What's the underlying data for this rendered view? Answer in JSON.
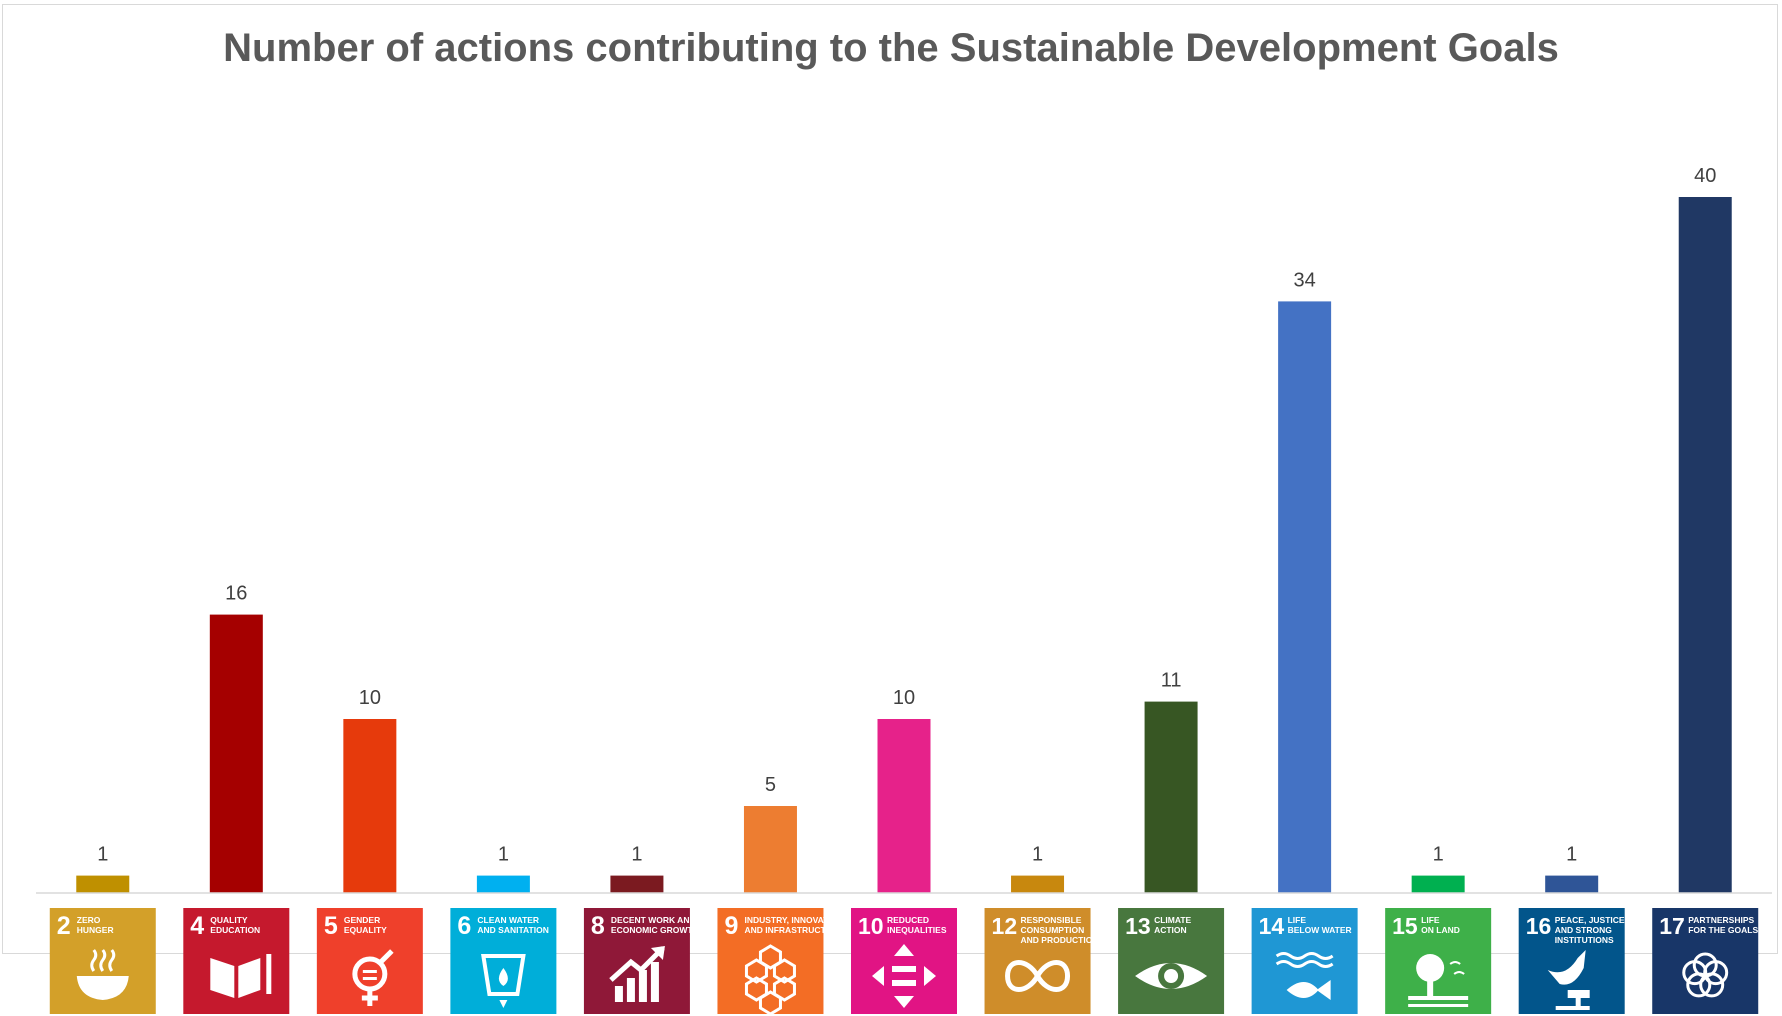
{
  "chart_data": {
    "type": "bar",
    "title": "Number of actions contributing to the Sustainable Development Goals",
    "xlabel": "",
    "ylabel": "",
    "ylim": [
      0,
      40
    ],
    "grid": false,
    "legend": "none",
    "categories": [
      {
        "num": "2",
        "line1": "ZERO",
        "line2": "HUNGER",
        "line3": "",
        "icon": "bowl-icon",
        "bar_color": "#BF9000",
        "tile_color": "#D3A029"
      },
      {
        "num": "4",
        "line1": "QUALITY",
        "line2": "EDUCATION",
        "line3": "",
        "icon": "book-icon",
        "bar_color": "#A50000",
        "tile_color": "#C5192D"
      },
      {
        "num": "5",
        "line1": "GENDER",
        "line2": "EQUALITY",
        "line3": "",
        "icon": "gender-icon",
        "bar_color": "#E63A0C",
        "tile_color": "#EF402B"
      },
      {
        "num": "6",
        "line1": "CLEAN WATER",
        "line2": "AND SANITATION",
        "line3": "",
        "icon": "water-icon",
        "bar_color": "#00B0F0",
        "tile_color": "#00AED9"
      },
      {
        "num": "8",
        "line1": "DECENT WORK AND",
        "line2": "ECONOMIC GROWTH",
        "line3": "",
        "icon": "growth-chart-icon",
        "bar_color": "#7B1A20",
        "tile_color": "#8F1838"
      },
      {
        "num": "9",
        "line1": "INDUSTRY, INNOVATION",
        "line2": "AND INFRASTRUCTURE",
        "line3": "",
        "icon": "cubes-icon",
        "bar_color": "#ED7D31",
        "tile_color": "#F36D25"
      },
      {
        "num": "10",
        "line1": "REDUCED",
        "line2": "INEQUALITIES",
        "line3": "",
        "icon": "equality-arrows-icon",
        "bar_color": "#E6228A",
        "tile_color": "#E11484"
      },
      {
        "num": "12",
        "line1": "RESPONSIBLE",
        "line2": "CONSUMPTION",
        "line3": "AND PRODUCTION",
        "icon": "infinity-icon",
        "bar_color": "#C8880E",
        "tile_color": "#CF8D2A"
      },
      {
        "num": "13",
        "line1": "CLIMATE",
        "line2": "ACTION",
        "line3": "",
        "icon": "eye-globe-icon",
        "bar_color": "#375623",
        "tile_color": "#48773E"
      },
      {
        "num": "14",
        "line1": "LIFE",
        "line2": "BELOW WATER",
        "line3": "",
        "icon": "fish-icon",
        "bar_color": "#4472C4",
        "tile_color": "#1F97D4"
      },
      {
        "num": "15",
        "line1": "LIFE",
        "line2": "ON LAND",
        "line3": "",
        "icon": "tree-icon",
        "bar_color": "#00B050",
        "tile_color": "#3EB049"
      },
      {
        "num": "16",
        "line1": "PEACE, JUSTICE",
        "line2": "AND STRONG",
        "line3": "INSTITUTIONS",
        "icon": "dove-gavel-icon",
        "bar_color": "#2F5597",
        "tile_color": "#02558B"
      },
      {
        "num": "17",
        "line1": "PARTNERSHIPS",
        "line2": "FOR THE GOALS",
        "line3": "",
        "icon": "flower-rings-icon",
        "bar_color": "#203864",
        "tile_color": "#183668"
      }
    ],
    "values": [
      1,
      16,
      10,
      1,
      1,
      5,
      10,
      1,
      11,
      34,
      1,
      1,
      40
    ]
  }
}
